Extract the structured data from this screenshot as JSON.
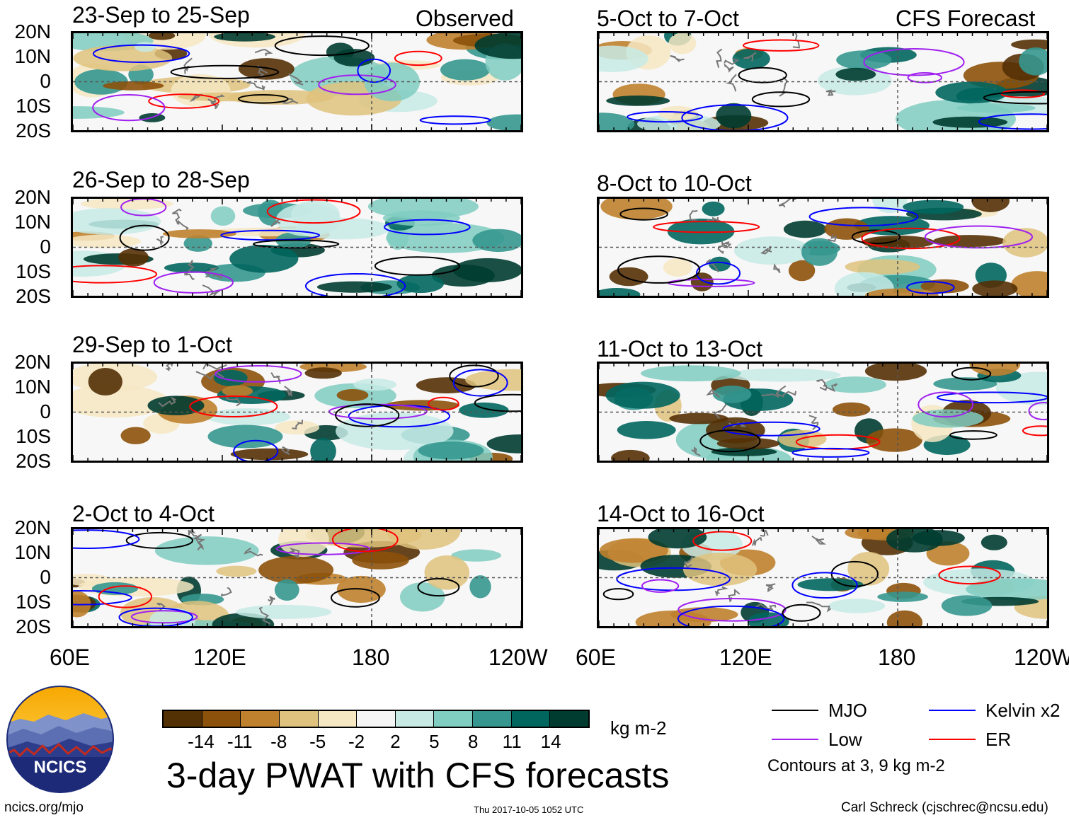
{
  "columns": {
    "observed_title": "Observed",
    "forecast_title": "CFS Forecast"
  },
  "panels": {
    "observed": [
      {
        "title": "23-Sep to 25-Sep"
      },
      {
        "title": "26-Sep to 28-Sep"
      },
      {
        "title": "29-Sep to 1-Oct"
      },
      {
        "title": "2-Oct to 4-Oct"
      }
    ],
    "forecast": [
      {
        "title": "5-Oct to 7-Oct"
      },
      {
        "title": "8-Oct to 10-Oct"
      },
      {
        "title": "11-Oct to 13-Oct"
      },
      {
        "title": "14-Oct to 16-Oct"
      }
    ]
  },
  "axes": {
    "lat_labels": [
      "20N",
      "10N",
      "0",
      "10S",
      "20S"
    ],
    "lon_labels": [
      "60E",
      "120E",
      "180",
      "120W"
    ]
  },
  "colorbar": {
    "ticks": [
      "-14",
      "-11",
      "-8",
      "-5",
      "-2",
      "2",
      "5",
      "8",
      "11",
      "14"
    ],
    "colors": [
      "#543005",
      "#8c510a",
      "#bf812d",
      "#dfc27d",
      "#f6e8c3",
      "#f5f5f5",
      "#c7eae5",
      "#80cdc1",
      "#35978f",
      "#01665e",
      "#003c30"
    ],
    "units": "kg m-2"
  },
  "legend": {
    "items": [
      {
        "label": "MJO",
        "color": "#000000"
      },
      {
        "label": "Kelvin x2",
        "color": "#0000ff"
      },
      {
        "label": "Low",
        "color": "#a020f0"
      },
      {
        "label": "ER",
        "color": "#ff0000"
      }
    ],
    "contours_note": "Contours at 3, 9 kg m-2"
  },
  "main_title": "3-day PWAT with CFS forecasts",
  "logo_text": "NCICS",
  "footer": {
    "website": "ncics.org/mjo",
    "timestamp": "Thu 2017-10-05 1052 UTC",
    "credit": "Carl Schreck (cjschrec@ncsu.edu)"
  }
}
